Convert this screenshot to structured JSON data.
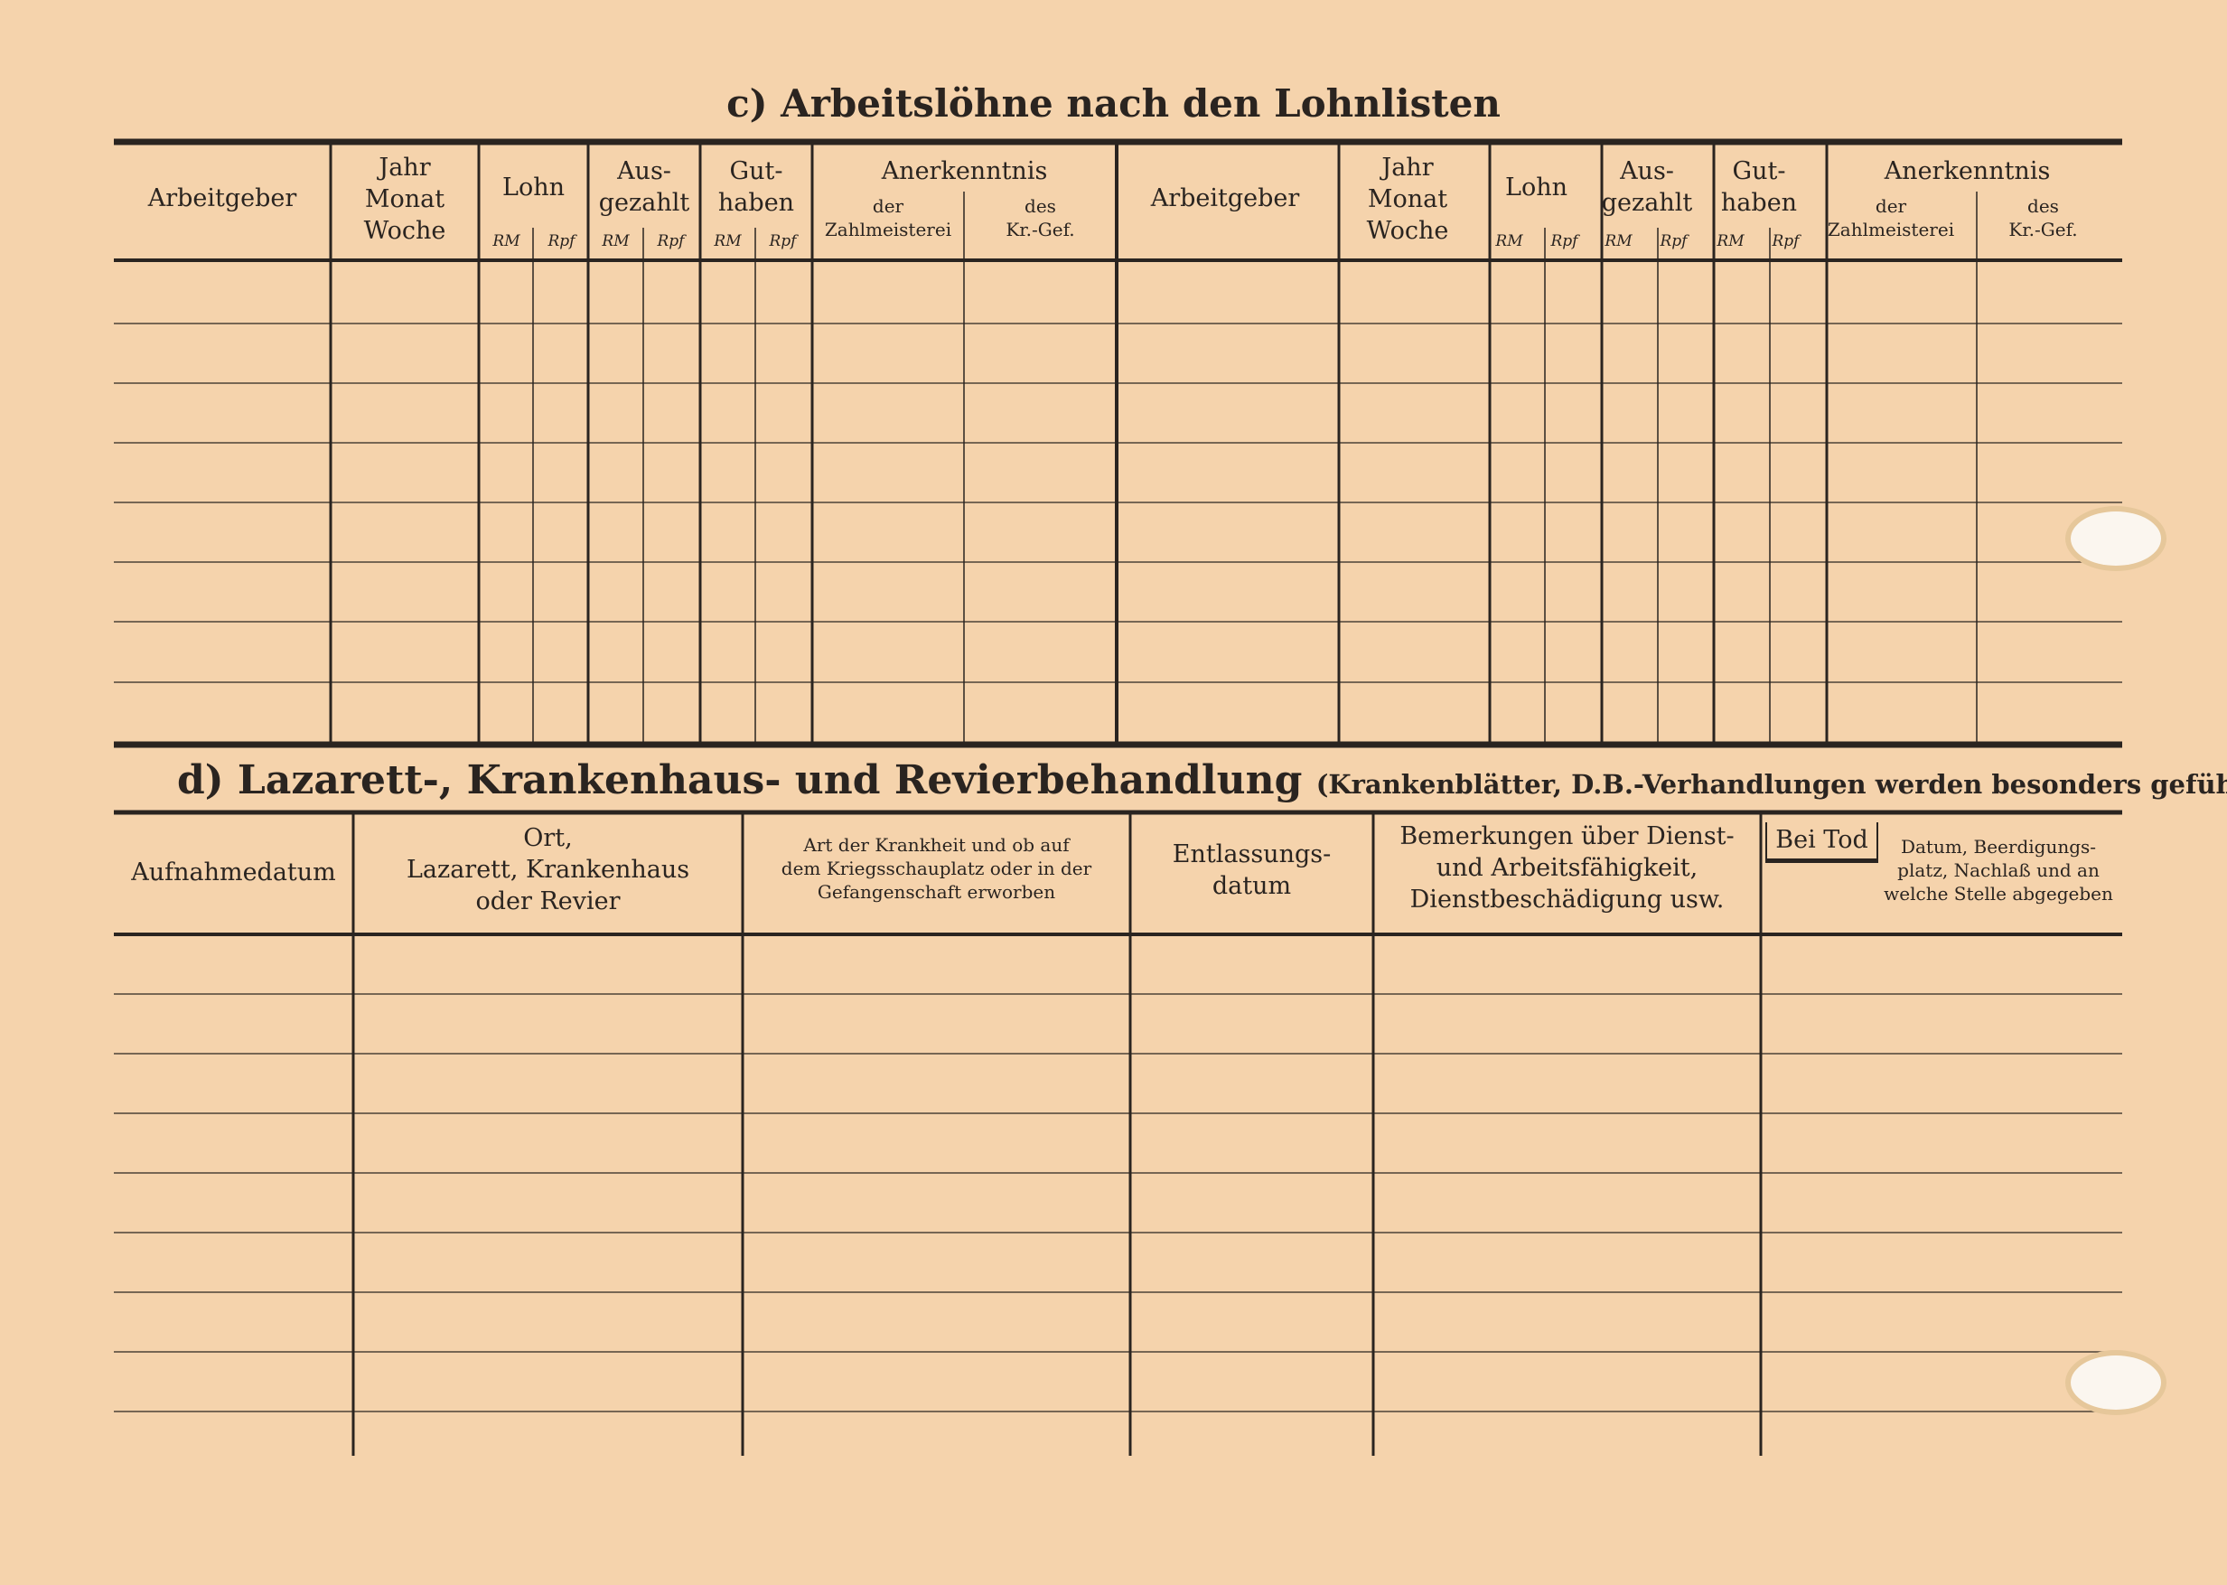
{
  "table_c": {
    "title": "c) Arbeitslöhne nach den Lohnlisten",
    "headers": {
      "employer": "Arbeitgeber",
      "period": "Jahr\nMonat\nWoche",
      "wage": "Lohn",
      "paid": "Aus-\ngezahlt",
      "credit": "Gut-\nhaben",
      "rm": "RM",
      "rpf": "Rpf",
      "acknowledgement": "Anerkenntnis",
      "paymaster": "der\nZahlmeisterei",
      "kr_gef": "des\nKr.-Gef."
    }
  },
  "table_d": {
    "title": "d) Lazarett-, Krankenhaus- und Revierbehandlung",
    "subtitle": "(Krankenblätter, D.B.-Verhandlungen werden besonders geführt)",
    "headers": {
      "admission_date": "Aufnahmedatum",
      "place": "Ort,\nLazarett, Krankenhaus\noder Revier",
      "illness": "Art der Krankheit und ob auf\ndem Kriegsschauplatz oder in der\nGefangenschaft erworben",
      "discharge_date": "Entlassungs-\ndatum",
      "remarks": "Bemerkungen über Dienst-\nund Arbeitsfähigkeit,\nDienstbeschädigung usw.",
      "death_label": "Bei Tod",
      "death_details": "Datum, Beerdigungs-\nplatz, Nachlaß und an\nwelche Stelle abgegeben"
    }
  },
  "colors": {
    "paper": "#f5d3ac",
    "ink": "#2a2420"
  }
}
